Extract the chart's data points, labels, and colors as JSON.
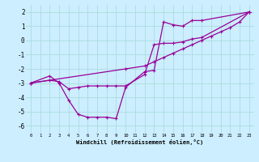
{
  "xlabel": "Windchill (Refroidissement éolien,°C)",
  "background_color": "#cceeff",
  "grid_color": "#aadddd",
  "line_color": "#990099",
  "xlim": [
    -0.5,
    23.5
  ],
  "ylim": [
    -6.5,
    2.5
  ],
  "yticks": [
    -6,
    -5,
    -4,
    -3,
    -2,
    -1,
    0,
    1,
    2
  ],
  "xticks": [
    0,
    1,
    2,
    3,
    4,
    5,
    6,
    7,
    8,
    9,
    10,
    11,
    12,
    13,
    14,
    15,
    16,
    17,
    18,
    19,
    20,
    21,
    22,
    23
  ],
  "series": [
    {
      "x": [
        0,
        2,
        3,
        4,
        5,
        6,
        7,
        8,
        9,
        10,
        12,
        13,
        14,
        15,
        16,
        17,
        18,
        23
      ],
      "y": [
        -3.0,
        -2.5,
        -3.0,
        -4.2,
        -5.2,
        -5.4,
        -5.4,
        -5.4,
        -5.5,
        -3.3,
        -2.2,
        -2.1,
        1.3,
        1.1,
        1.0,
        1.4,
        1.4,
        2.0
      ]
    },
    {
      "x": [
        0,
        2,
        3,
        4,
        5,
        6,
        7,
        8,
        9,
        10,
        12,
        13,
        14,
        15,
        16,
        17,
        18,
        23
      ],
      "y": [
        -3.0,
        -2.8,
        -2.9,
        -3.4,
        -3.3,
        -3.2,
        -3.2,
        -3.2,
        -3.2,
        -3.2,
        -2.4,
        -0.3,
        -0.2,
        -0.2,
        -0.1,
        0.1,
        0.2,
        2.0
      ]
    },
    {
      "x": [
        0,
        10,
        12,
        13,
        14,
        15,
        16,
        17,
        18,
        19,
        20,
        21,
        22,
        23
      ],
      "y": [
        -3.0,
        -2.0,
        -1.8,
        -1.5,
        -1.2,
        -0.9,
        -0.6,
        -0.3,
        0.0,
        0.3,
        0.6,
        0.9,
        1.3,
        2.0
      ]
    }
  ]
}
